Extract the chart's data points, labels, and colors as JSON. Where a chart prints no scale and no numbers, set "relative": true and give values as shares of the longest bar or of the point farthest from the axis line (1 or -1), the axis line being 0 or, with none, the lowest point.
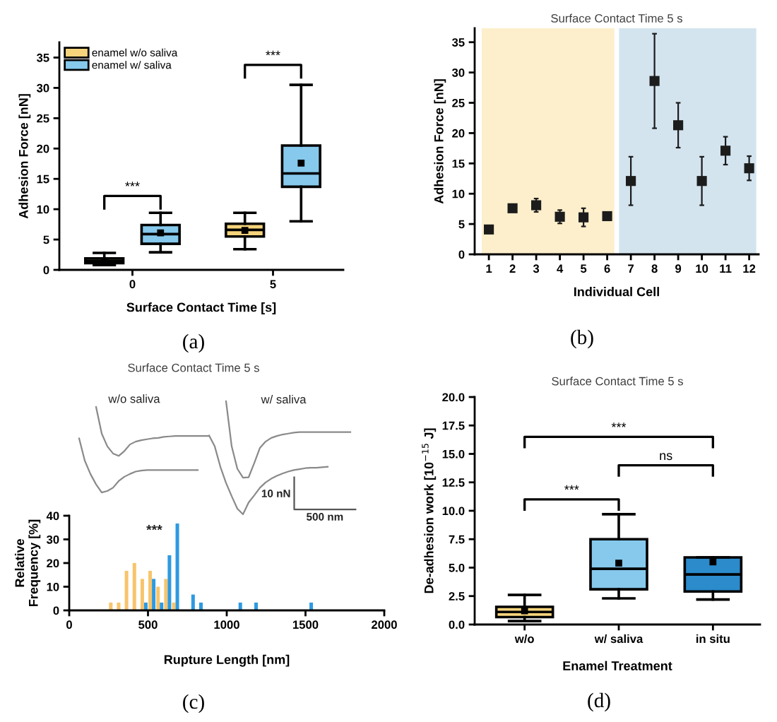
{
  "chart_data": [
    {
      "type": "box",
      "categories": [
        "0",
        "5"
      ],
      "xlabel": "Surface Contact Time [s]",
      "ylabel": "Adhesion Force [nN]",
      "ylim": [
        0,
        37.5
      ],
      "yticks": [
        0,
        5,
        10,
        15,
        20,
        25,
        30,
        35
      ],
      "legend": "top left",
      "series": [
        {
          "name": "enamel w/o saliva",
          "color": "#f6d47c",
          "boxes": [
            {
              "low": 0.8,
              "q1": 1.1,
              "median": 1.5,
              "q3": 1.9,
              "high": 2.8,
              "mean": 1.4
            },
            {
              "low": 3.4,
              "q1": 5.5,
              "median": 6.6,
              "q3": 7.6,
              "high": 9.4,
              "mean": 6.5
            }
          ]
        },
        {
          "name": "enamel w/ saliva",
          "color": "#86c9ec",
          "boxes": [
            {
              "low": 2.9,
              "q1": 4.3,
              "median": 5.9,
              "q3": 7.4,
              "high": 9.4,
              "mean": 6.1
            },
            {
              "low": 8.0,
              "q1": 13.7,
              "median": 15.9,
              "q3": 20.5,
              "high": 30.5,
              "mean": 17.6
            }
          ]
        }
      ],
      "annotations": [
        "***",
        "***",
        "(a)"
      ]
    },
    {
      "type": "scatter",
      "title": "Surface Contact Time 5 s",
      "xlabel": "Individual Cell",
      "ylabel": "Adhesion Force [nN]",
      "x": [
        1,
        2,
        3,
        4,
        5,
        6,
        7,
        8,
        9,
        10,
        11,
        12
      ],
      "values": [
        4.1,
        7.6,
        8.1,
        6.2,
        6.1,
        6.3,
        12.1,
        28.6,
        21.3,
        12.1,
        17.1,
        14.2
      ],
      "errors": [
        null,
        0.5,
        1.1,
        1.1,
        1.5,
        null,
        4.0,
        7.8,
        3.7,
        4.0,
        2.3,
        2.0
      ],
      "color": "#1c1c1c",
      "marker": "square",
      "xlim": [
        0.4,
        12.4
      ],
      "xticks": [
        1,
        2,
        3,
        4,
        5,
        6,
        7,
        8,
        9,
        10,
        11,
        12
      ],
      "ylim": [
        0,
        37.3
      ],
      "yticks": [
        0,
        5,
        10,
        15,
        20,
        25,
        30,
        35
      ],
      "bands": [
        {
          "axis": "x",
          "from": 0.7,
          "to": 6.3,
          "color": "#fdefcc"
        },
        {
          "axis": "x",
          "from": 6.5,
          "to": 12.3,
          "color": "#d3e4ef"
        }
      ],
      "annotations": [
        "(b)"
      ]
    },
    {
      "type": "line",
      "relative": true,
      "title": "Surface Contact Time 5 s",
      "categories": [
        null,
        null,
        null,
        null,
        null,
        null,
        null,
        null,
        null,
        null,
        null,
        null,
        null,
        null,
        null,
        null,
        null,
        null,
        null,
        null,
        null,
        null,
        null,
        null,
        null,
        null,
        null,
        null,
        null,
        null,
        null,
        null,
        null,
        null,
        null,
        null,
        null,
        null,
        null,
        null,
        null,
        null,
        null,
        null,
        null,
        null,
        null,
        null,
        null
      ],
      "series": [
        {
          "color": "#8a8a8a",
          "values": [
            null,
            null,
            null,
            0.95,
            0.714,
            0.601,
            0.538,
            0.517,
            0.559,
            0.618,
            0.643,
            0.655,
            0.664,
            0.672,
            0.676,
            0.685,
            0.689,
            0.693,
            0.693,
            0.693,
            0.693,
            0.693,
            0.693,
            0.693,
            null,
            null,
            null,
            null,
            null,
            null,
            null,
            null,
            null,
            null,
            null,
            null,
            null,
            null,
            null,
            null,
            null,
            null,
            null,
            null,
            null,
            null,
            null,
            null,
            null
          ]
        },
        {
          "color": "#8a8a8a",
          "values": [
            0.672,
            0.475,
            0.357,
            0.265,
            0.193,
            0.206,
            0.235,
            0.294,
            0.332,
            0.357,
            0.378,
            0.387,
            0.391,
            0.391,
            0.391,
            0.391,
            0.391,
            0.391,
            0.391,
            0.391,
            0.391,
            0.391,
            null,
            null,
            null,
            null,
            null,
            null,
            null,
            null,
            null,
            null,
            null,
            null,
            null,
            null,
            null,
            null,
            null,
            null,
            null,
            null,
            null,
            null,
            null,
            null,
            null,
            null,
            null
          ]
        },
        {
          "color": "#8a8a8a",
          "values": [
            null,
            null,
            null,
            null,
            null,
            null,
            null,
            null,
            null,
            null,
            null,
            null,
            null,
            null,
            null,
            null,
            null,
            null,
            null,
            null,
            null,
            null,
            null,
            null,
            null,
            null,
            1.0,
            0.601,
            0.403,
            0.324,
            0.328,
            0.454,
            0.588,
            0.643,
            0.676,
            0.693,
            0.706,
            0.714,
            0.723,
            0.727,
            0.727,
            0.727,
            0.727,
            0.727,
            0.727,
            0.727,
            0.727,
            0.727,
            0.727
          ]
        },
        {
          "color": "#8a8a8a",
          "values": [
            null,
            null,
            null,
            null,
            null,
            null,
            null,
            null,
            null,
            null,
            null,
            null,
            null,
            null,
            null,
            null,
            null,
            null,
            null,
            null,
            null,
            null,
            null,
            0.697,
            0.601,
            0.42,
            0.277,
            0.16,
            0.05,
            0.0,
            0.105,
            0.168,
            0.235,
            0.282,
            0.315,
            0.34,
            0.361,
            0.378,
            0.391,
            0.399,
            0.408,
            0.412,
            0.412,
            0.416,
            0.42,
            null,
            null,
            null,
            null
          ]
        }
      ],
      "annotations": [
        "w/o saliva",
        "w/ saliva",
        "10 nN",
        "500 nm"
      ]
    },
    {
      "type": "histogram",
      "xlabel": "Rupture Length [nm]",
      "ylabel": "Relative\nFrequency [%]",
      "bins": [
        250,
        300,
        350,
        400,
        450,
        500,
        550,
        600,
        650,
        700,
        750,
        800,
        850,
        900,
        950,
        1000,
        1050,
        1100,
        1150,
        1200,
        1250,
        1300,
        1350,
        1400,
        1450,
        1500,
        1550
      ],
      "series": [
        {
          "color": "#f8c46c",
          "values": [
            3.3,
            3.3,
            16.7,
            20,
            13.3,
            16.7,
            10,
            13.3,
            3.3,
            null,
            null,
            null,
            null,
            null,
            null,
            null,
            null,
            null,
            null,
            null,
            null,
            null,
            null,
            null,
            null,
            null
          ]
        },
        {
          "color": "#2e9ae0",
          "values": [
            null,
            null,
            null,
            null,
            3.3,
            13.3,
            3.3,
            23.3,
            36.7,
            null,
            6.7,
            3.3,
            null,
            null,
            null,
            null,
            3.3,
            null,
            3.3,
            null,
            null,
            null,
            null,
            null,
            null,
            3.3
          ]
        }
      ],
      "xlim": [
        0,
        2000
      ],
      "xticks": [
        0,
        500,
        1000,
        1500,
        2000
      ],
      "ylim": [
        0,
        40
      ],
      "yticks": [
        0,
        10,
        20,
        30,
        40
      ],
      "annotations": [
        "***",
        "(c)"
      ]
    },
    {
      "type": "box",
      "title": "Surface Contact Time 5 s",
      "categories": [
        "w/o",
        "w/ saliva",
        "in situ"
      ],
      "xlabel": "Enamel Treatment",
      "ylabel": "De-adhesion work [10$^{−15}$ J]",
      "ylim": [
        0,
        20
      ],
      "yticks": [
        {
          "value": 0,
          "label": "0.0"
        },
        2.5,
        {
          "value": 5,
          "label": "5.0"
        },
        7.5,
        {
          "value": 10,
          "label": "10.0"
        },
        12.5,
        {
          "value": 15,
          "label": "15.0"
        },
        17.5,
        {
          "value": 20,
          "label": "20.0"
        }
      ],
      "colors": [
        "#f6d47c",
        "#86c9ec",
        "#2b8bcb"
      ],
      "boxes": [
        {
          "low": 0.3,
          "q1": 0.65,
          "median": 1.1,
          "q3": 1.55,
          "high": 2.6,
          "mean": 1.2
        },
        {
          "low": 2.3,
          "q1": 3.1,
          "median": 4.9,
          "q3": 7.5,
          "high": 9.7,
          "mean": 5.4
        },
        {
          "low": 2.2,
          "q1": 2.9,
          "median": 4.4,
          "q3": 5.9,
          "high": 5.9,
          "mean": 5.5
        }
      ],
      "annotations": [
        "***",
        "ns",
        "***",
        "(d)"
      ]
    }
  ]
}
